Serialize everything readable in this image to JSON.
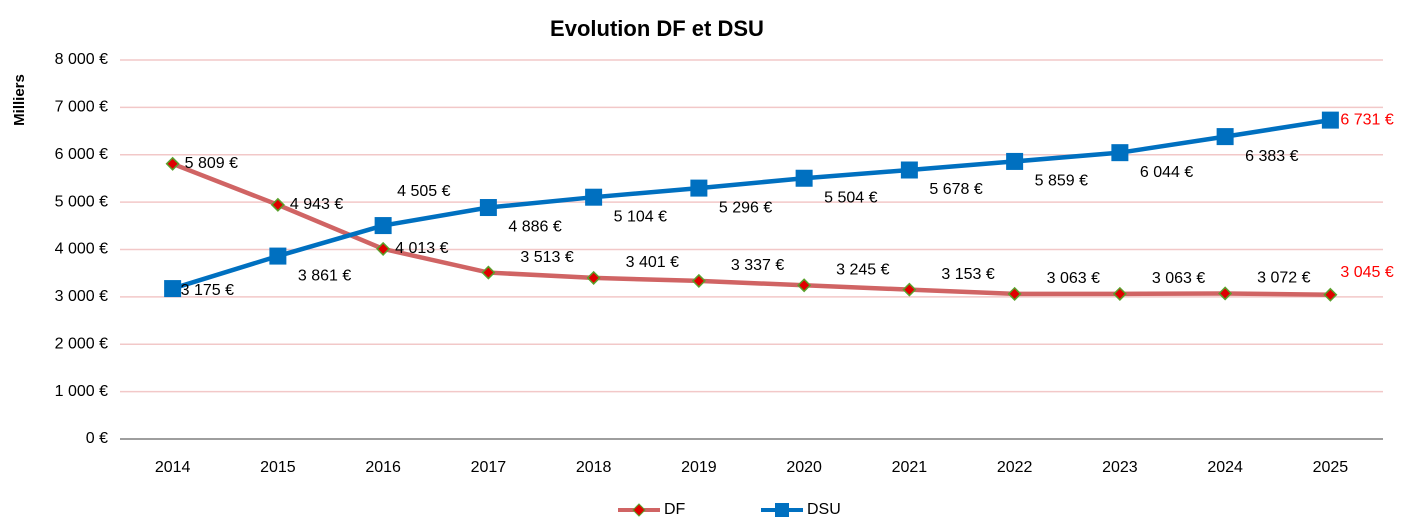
{
  "chart_data": {
    "type": "line",
    "title": "Evolution DF et DSU",
    "y_label": "Milliers",
    "categories": [
      "2014",
      "2015",
      "2016",
      "2017",
      "2018",
      "2019",
      "2020",
      "2021",
      "2022",
      "2023",
      "2024",
      "2025"
    ],
    "series": [
      {
        "name": "DF",
        "color": "#d06464",
        "marker": "diamond",
        "marker_color": "#e00000",
        "marker_edge": "#5aa02c",
        "values": [
          5809,
          4943,
          4013,
          3513,
          3401,
          3337,
          3245,
          3153,
          3063,
          3063,
          3072,
          3045
        ],
        "value_labels": [
          "5 809 €",
          "4 943 €",
          "4 013 €",
          "3 513 €",
          "3 401 €",
          "3 337 €",
          "3 245 €",
          "3 153 €",
          "3 063 €",
          "3 063 €",
          "3 072 €",
          "3 045 €"
        ]
      },
      {
        "name": "DSU",
        "color": "#0070c0",
        "marker": "square",
        "marker_color": "#0070c0",
        "marker_edge": "#0070c0",
        "values": [
          3175,
          3861,
          4505,
          4886,
          5104,
          5296,
          5504,
          5678,
          5859,
          6044,
          6383,
          6731
        ],
        "value_labels": [
          "3 175 €",
          "3 861 €",
          "4 505 €",
          "4 886 €",
          "5 104 €",
          "5 296 €",
          "5 504 €",
          "5 678 €",
          "5 859 €",
          "6 044 €",
          "6 383 €",
          "6 731 €"
        ]
      }
    ],
    "last_label_color": "#ff0000",
    "ylim": [
      0,
      8000
    ],
    "yticks": [
      {
        "value": 0,
        "label": "0 €"
      },
      {
        "value": 1000,
        "label": "1 000 €"
      },
      {
        "value": 2000,
        "label": "2 000 €"
      },
      {
        "value": 3000,
        "label": "3 000 €"
      },
      {
        "value": 4000,
        "label": "4 000 €"
      },
      {
        "value": 5000,
        "label": "5 000 €"
      },
      {
        "value": 6000,
        "label": "6 000 €"
      },
      {
        "value": 7000,
        "label": "7 000 €"
      },
      {
        "value": 8000,
        "label": "8 000 €"
      }
    ],
    "grid": true,
    "grid_color": "#f2c8c8",
    "legend": "bottom"
  }
}
